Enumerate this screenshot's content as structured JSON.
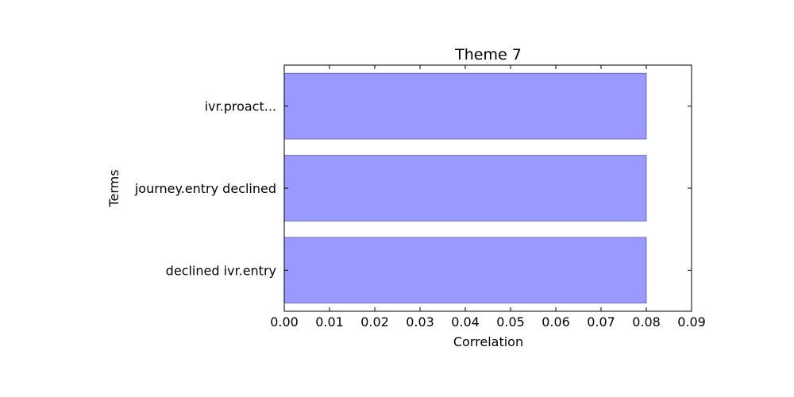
{
  "chart_data": {
    "type": "bar",
    "orientation": "horizontal",
    "title": "Theme 7",
    "xlabel": "Correlation",
    "ylabel": "Terms",
    "categories": [
      "ivr.proact...",
      "journey.entry declined",
      "declined ivr.entry"
    ],
    "values": [
      0.08,
      0.08,
      0.08
    ],
    "xlim": [
      0,
      0.09
    ],
    "xticks": [
      "0.00",
      "0.01",
      "0.02",
      "0.03",
      "0.04",
      "0.05",
      "0.06",
      "0.07",
      "0.08",
      "0.09"
    ],
    "grid": false,
    "legend": "none",
    "colors": {
      "bar_fill": "#9999ff",
      "bar_edge": "#6f6fb8",
      "axis": "#000000"
    }
  }
}
